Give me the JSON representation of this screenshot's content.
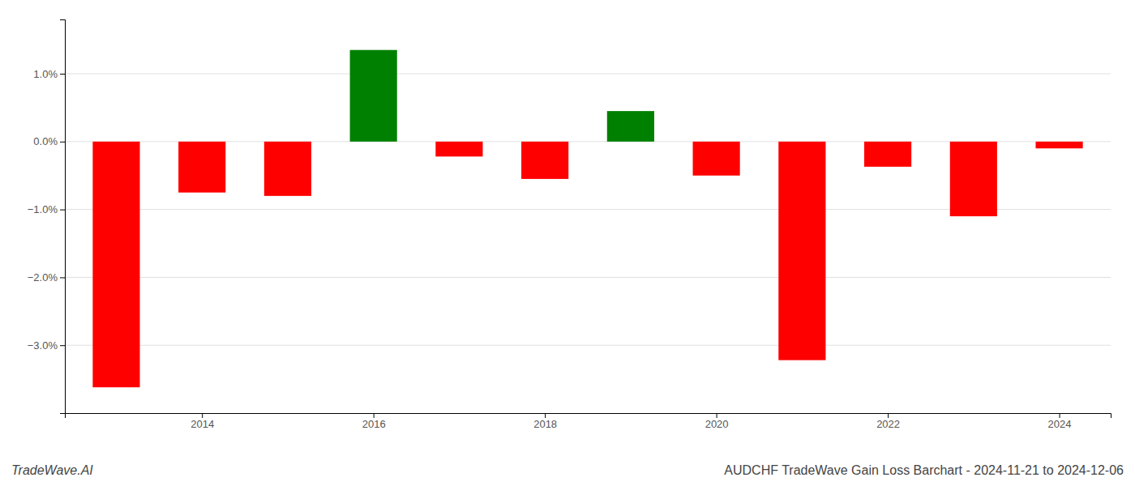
{
  "chart_data": {
    "type": "bar",
    "title": "AUDCHF TradeWave Gain Loss Barchart - 2024-11-21 to 2024-12-06",
    "annotations": [
      "TradeWave.AI"
    ],
    "x": [
      2013,
      2014,
      2015,
      2016,
      2017,
      2018,
      2019,
      2020,
      2021,
      2022,
      2023,
      2024
    ],
    "values": [
      -3.62,
      -0.75,
      -0.8,
      1.35,
      -0.22,
      -0.55,
      0.45,
      -0.5,
      -3.22,
      -0.37,
      -1.1,
      -0.1
    ],
    "colors": [
      "#ff0000",
      "#ff0000",
      "#ff0000",
      "#008000",
      "#ff0000",
      "#ff0000",
      "#008000",
      "#ff0000",
      "#ff0000",
      "#ff0000",
      "#ff0000",
      "#ff0000"
    ],
    "xlim": [
      2012.4,
      2024.6
    ],
    "xticks": [
      2014,
      2016,
      2018,
      2020,
      2022,
      2024
    ],
    "ylim": [
      -4.0,
      1.8
    ],
    "yticks": [
      {
        "value": -3.0,
        "label": "−3.0%"
      },
      {
        "value": -2.0,
        "label": "−2.0%"
      },
      {
        "value": -1.0,
        "label": "−1.0%"
      },
      {
        "value": 0.0,
        "label": "0.0%"
      },
      {
        "value": 1.0,
        "label": "1.0%"
      }
    ],
    "grid": true
  }
}
